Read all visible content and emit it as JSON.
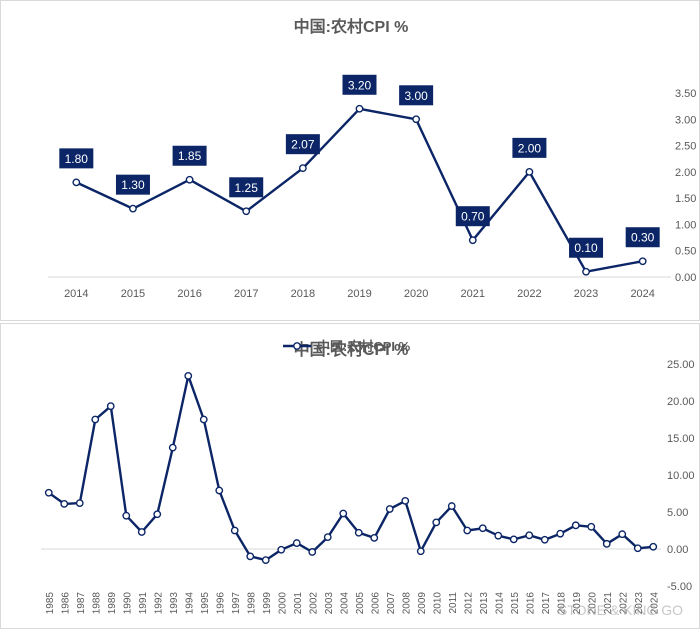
{
  "colors": {
    "line": "#0b2566",
    "axis": "#595959",
    "grid": "#d9d9d9",
    "label_bg": "#0b2566",
    "label_text": "#ffffff"
  },
  "chart_data": [
    {
      "type": "line",
      "title": "中国:农村CPI %",
      "categories": [
        "2014",
        "2015",
        "2016",
        "2017",
        "2018",
        "2019",
        "2020",
        "2021",
        "2022",
        "2023",
        "2024"
      ],
      "values": [
        1.8,
        1.3,
        1.85,
        1.25,
        2.07,
        3.2,
        3.0,
        0.7,
        2.0,
        0.1,
        0.3
      ],
      "data_labels": [
        "1.80",
        "1.30",
        "1.85",
        "1.25",
        "2.07",
        "3.20",
        "3.00",
        "0.70",
        "2.00",
        "0.10",
        "0.30"
      ],
      "ylim": [
        0,
        3.5
      ],
      "yticks": [
        "0.00",
        "0.50",
        "1.00",
        "1.50",
        "2.00",
        "2.50",
        "3.00",
        "3.50"
      ],
      "y_axis_side": "right",
      "grid": false
    },
    {
      "type": "line",
      "title": "中国:农村CPI %",
      "legend_label": "中国:农村CPI %",
      "legend_position": "top-center",
      "categories": [
        "1985",
        "1986",
        "1987",
        "1988",
        "1989",
        "1990",
        "1991",
        "1992",
        "1993",
        "1994",
        "1995",
        "1996",
        "1997",
        "1998",
        "1999",
        "2000",
        "2001",
        "2002",
        "2003",
        "2004",
        "2005",
        "2006",
        "2007",
        "2008",
        "2009",
        "2010",
        "2011",
        "2012",
        "2013",
        "2014",
        "2015",
        "2016",
        "2017",
        "2018",
        "2019",
        "2020",
        "2021",
        "2022",
        "2023",
        "2024"
      ],
      "values": [
        7.6,
        6.1,
        6.2,
        17.5,
        19.3,
        4.5,
        2.3,
        4.7,
        13.7,
        23.4,
        17.5,
        7.9,
        2.5,
        -1.0,
        -1.5,
        -0.1,
        0.8,
        -0.4,
        1.6,
        4.8,
        2.2,
        1.5,
        5.4,
        6.5,
        -0.3,
        3.6,
        5.8,
        2.5,
        2.8,
        1.8,
        1.3,
        1.85,
        1.25,
        2.07,
        3.2,
        3.0,
        0.7,
        2.0,
        0.1,
        0.3
      ],
      "ylim": [
        -5,
        25
      ],
      "yticks": [
        "-5.00",
        "0.00",
        "5.00",
        "10.00",
        "15.00",
        "20.00",
        "25.00"
      ],
      "y_axis_side": "right",
      "grid": false
    }
  ],
  "watermark": "STONE & KING GO"
}
